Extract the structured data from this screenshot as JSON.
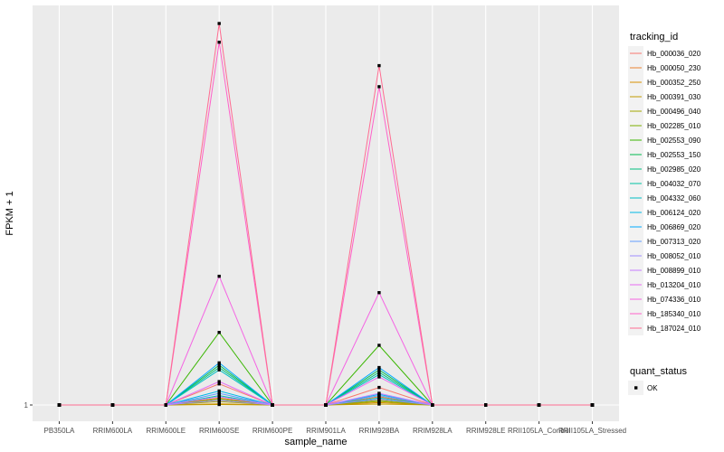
{
  "chart_data": {
    "type": "line",
    "xlabel": "sample_name",
    "ylabel": "FPKM + 1",
    "y_tick_labels": [
      "1"
    ],
    "categories": [
      "PB350LA",
      "RRIM600LA",
      "RRIM600LE",
      "RRIM600SE",
      "RRIM600PE",
      "RRIM901LA",
      "RRIM928BA",
      "RRIM928LA",
      "RRIM928LE",
      "RRII105LA_Control",
      "RRII105LA_Stressed"
    ],
    "legend_color": {
      "title": "tracking_id",
      "position": "right"
    },
    "legend_shape": {
      "title": "quant_status",
      "entries": [
        "OK"
      ]
    },
    "series": [
      {
        "name": "Hb_000036_020",
        "color": "#F8766D",
        "values": [
          1,
          1,
          1,
          1.9,
          1,
          1,
          1.75,
          1,
          1,
          1,
          1
        ]
      },
      {
        "name": "Hb_000050_230",
        "color": "#EA8331",
        "values": [
          1,
          1,
          1,
          1.3,
          1,
          1,
          1.35,
          1,
          1,
          1,
          1
        ]
      },
      {
        "name": "Hb_000352_250",
        "color": "#D89000",
        "values": [
          1,
          1,
          1,
          1.05,
          1,
          1,
          1.1,
          1,
          1,
          1,
          1
        ]
      },
      {
        "name": "Hb_000391_030",
        "color": "#C09B00",
        "values": [
          1,
          1,
          1,
          1.02,
          1,
          1,
          1.04,
          1,
          1,
          1,
          1
        ]
      },
      {
        "name": "Hb_000496_040",
        "color": "#A3A500",
        "values": [
          1,
          1,
          1,
          1.15,
          1,
          1,
          1.15,
          1,
          1,
          1,
          1
        ]
      },
      {
        "name": "Hb_002285_010",
        "color": "#7CAE00",
        "values": [
          1,
          1,
          1,
          1.25,
          1,
          1,
          1.2,
          1,
          1,
          1,
          1
        ]
      },
      {
        "name": "Hb_002553_090",
        "color": "#39B600",
        "values": [
          1,
          1,
          1,
          4.1,
          1,
          1,
          3.55,
          1,
          1,
          1,
          1
        ]
      },
      {
        "name": "Hb_002553_150",
        "color": "#00BB4E",
        "values": [
          1,
          1,
          1,
          2.7,
          1,
          1,
          2.5,
          1,
          1,
          1,
          1
        ]
      },
      {
        "name": "Hb_002985_020",
        "color": "#00BF7D",
        "values": [
          1,
          1,
          1,
          2.6,
          1,
          1,
          2.4,
          1,
          1,
          1,
          1
        ]
      },
      {
        "name": "Hb_004032_070",
        "color": "#00C1A3",
        "values": [
          1,
          1,
          1,
          1.4,
          1,
          1,
          1.3,
          1,
          1,
          1,
          1
        ]
      },
      {
        "name": "Hb_004332_060",
        "color": "#00BFC4",
        "values": [
          1,
          1,
          1,
          2.5,
          1,
          1,
          2.3,
          1,
          1,
          1,
          1
        ]
      },
      {
        "name": "Hb_006124_020",
        "color": "#00B8E7",
        "values": [
          1,
          1,
          1,
          1.6,
          1,
          1,
          1.45,
          1,
          1,
          1,
          1
        ]
      },
      {
        "name": "Hb_006869_020",
        "color": "#00A9FF",
        "values": [
          1,
          1,
          1,
          2.8,
          1,
          1,
          2.6,
          1,
          1,
          1,
          1
        ]
      },
      {
        "name": "Hb_007313_020",
        "color": "#619CFF",
        "values": [
          1,
          1,
          1,
          1.5,
          1,
          1,
          1.4,
          1,
          1,
          1,
          1
        ]
      },
      {
        "name": "Hb_008052_010",
        "color": "#9F8CFF",
        "values": [
          1,
          1,
          1,
          1.2,
          1,
          1,
          1.25,
          1,
          1,
          1,
          1
        ]
      },
      {
        "name": "Hb_008899_010",
        "color": "#C77CFF",
        "values": [
          1,
          1,
          1,
          1.35,
          1,
          1,
          1.5,
          1,
          1,
          1,
          1
        ]
      },
      {
        "name": "Hb_013204_010",
        "color": "#E76BF3",
        "values": [
          1,
          1,
          1,
          2.0,
          1,
          1,
          2.2,
          1,
          1,
          1,
          1
        ]
      },
      {
        "name": "Hb_074336_010",
        "color": "#F564E3",
        "values": [
          1,
          1,
          1,
          6.5,
          1,
          1,
          5.8,
          1,
          1,
          1,
          1
        ]
      },
      {
        "name": "Hb_185340_010",
        "color": "#FF61C9",
        "values": [
          1,
          1,
          1,
          16.5,
          1,
          1,
          14.6,
          1,
          1,
          1,
          1
        ]
      },
      {
        "name": "Hb_187024_010",
        "color": "#FF6C91",
        "values": [
          1,
          1,
          1,
          17.3,
          1,
          1,
          15.5,
          1,
          1,
          1,
          1
        ]
      }
    ]
  }
}
